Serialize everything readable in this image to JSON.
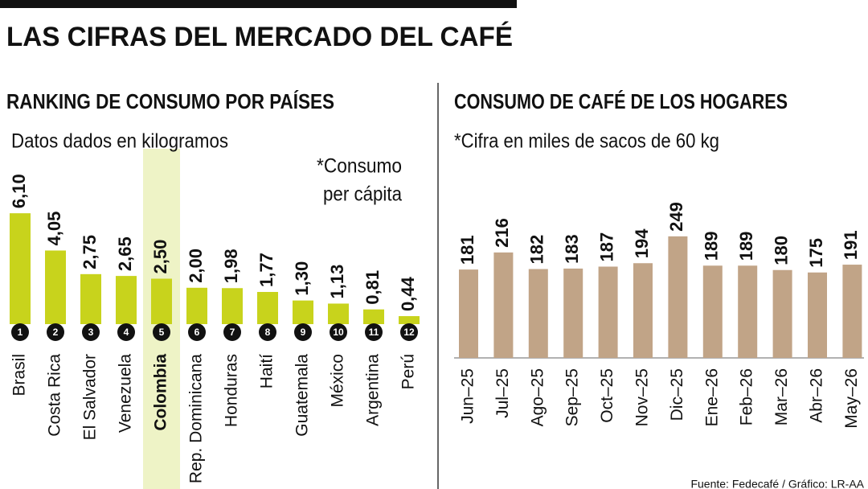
{
  "title": "LAS CIFRAS DEL MERCADO DEL CAFÉ",
  "source": "Fuente: Fedecafé / Gráfico: LR-AA",
  "chart_data": [
    {
      "type": "bar",
      "title": "RANKING DE CONSUMO POR PAÍSES",
      "subtitle": "Datos dados en kilogramos",
      "note": [
        "*Consumo",
        "per cápita"
      ],
      "color": "#c8d31c",
      "highlight_index": 4,
      "categories": [
        "Brasil",
        "Costa Rica",
        "El Salvador",
        "Venezuela",
        "Colombia",
        "Rep. Dominicana",
        "Honduras",
        "Haití",
        "Guatemala",
        "México",
        "Argentina",
        "Perú"
      ],
      "ranks": [
        1,
        2,
        3,
        4,
        5,
        6,
        7,
        8,
        9,
        10,
        11,
        12
      ],
      "values": [
        6.1,
        4.05,
        2.75,
        2.65,
        2.5,
        2.0,
        1.98,
        1.77,
        1.3,
        1.13,
        0.81,
        0.44
      ],
      "value_labels": [
        "6,10",
        "4,05",
        "2,75",
        "2,65",
        "2,50",
        "2,00",
        "1,98",
        "1,77",
        "1,30",
        "1,13",
        "0,81",
        "0,44"
      ]
    },
    {
      "type": "bar",
      "title": "CONSUMO DE CAFÉ DE LOS HOGARES",
      "subtitle": "*Cifra en miles de sacos de 60 kg",
      "color": "#c1a487",
      "categories": [
        "Jun–25",
        "Jul–25",
        "Ago–25",
        "Sep–25",
        "Oct–25",
        "Nov–25",
        "Dic–25",
        "Ene–26",
        "Feb–26",
        "Mar–26",
        "Abr–26",
        "May–26"
      ],
      "values": [
        181,
        216,
        182,
        183,
        187,
        194,
        249,
        189,
        189,
        180,
        175,
        191
      ]
    }
  ]
}
